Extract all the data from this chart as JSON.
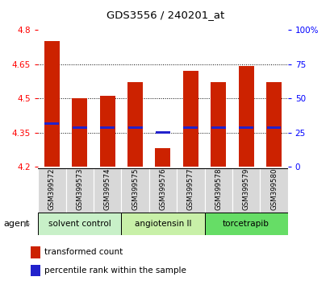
{
  "title": "GDS3556 / 240201_at",
  "samples": [
    "GSM399572",
    "GSM399573",
    "GSM399574",
    "GSM399575",
    "GSM399576",
    "GSM399577",
    "GSM399578",
    "GSM399579",
    "GSM399580"
  ],
  "bar_values": [
    4.75,
    4.5,
    4.51,
    4.57,
    4.28,
    4.62,
    4.57,
    4.64,
    4.57
  ],
  "percentile_values": [
    4.39,
    4.37,
    4.37,
    4.37,
    4.35,
    4.37,
    4.37,
    4.37,
    4.37
  ],
  "y_min": 4.2,
  "y_max": 4.8,
  "y_ticks_left": [
    4.2,
    4.35,
    4.5,
    4.65,
    4.8
  ],
  "y_ticks_right": [
    0,
    25,
    50,
    75,
    100
  ],
  "bar_color": "#cc2200",
  "percentile_color": "#2222cc",
  "bar_width": 0.55,
  "groups": [
    {
      "label": "solvent control",
      "samples": [
        0,
        1,
        2
      ],
      "color": "#c8f0c8"
    },
    {
      "label": "angiotensin II",
      "samples": [
        3,
        4,
        5
      ],
      "color": "#c8f0a8"
    },
    {
      "label": "torcetrapib",
      "samples": [
        6,
        7,
        8
      ],
      "color": "#66dd66"
    }
  ],
  "legend_red_label": "transformed count",
  "legend_blue_label": "percentile rank within the sample",
  "agent_label": "agent",
  "background_color": "#ffffff"
}
